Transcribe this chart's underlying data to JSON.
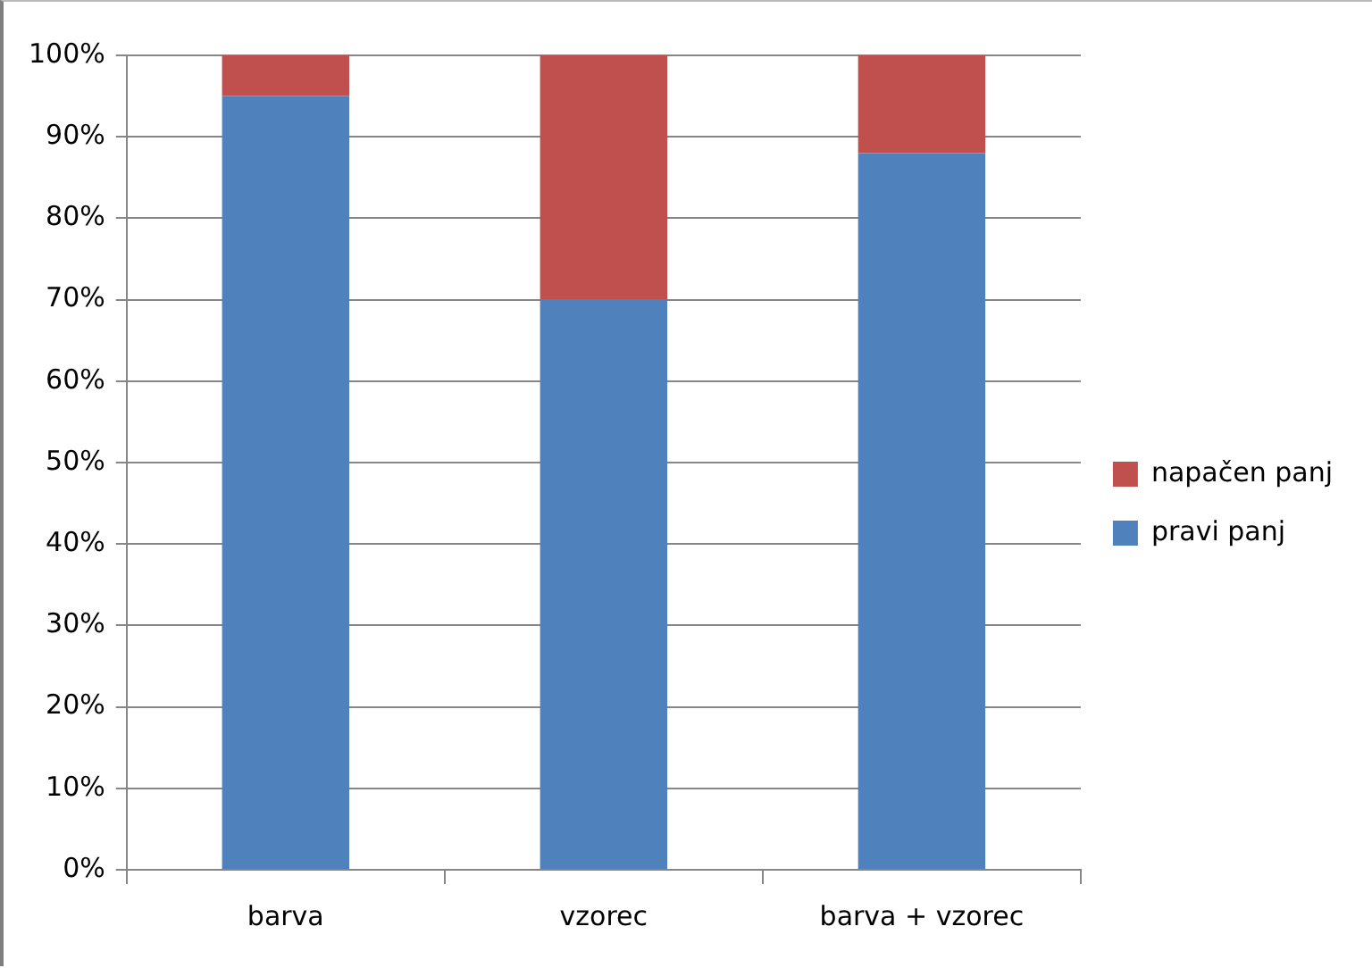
{
  "chart_data": {
    "type": "bar",
    "stacked": true,
    "categories": [
      "barva",
      "vzorec",
      "barva + vzorec"
    ],
    "series": [
      {
        "name": "pravi panj",
        "color": "#4f81bd",
        "values": [
          95,
          70,
          88
        ]
      },
      {
        "name": "napačen panj",
        "color": "#c0504d",
        "values": [
          5,
          30,
          12
        ]
      }
    ],
    "ylim": [
      0,
      100
    ],
    "yticks": [
      {
        "value": 0,
        "label": "0%"
      },
      {
        "value": 10,
        "label": "10%"
      },
      {
        "value": 20,
        "label": "20%"
      },
      {
        "value": 30,
        "label": "30%"
      },
      {
        "value": 40,
        "label": "40%"
      },
      {
        "value": 50,
        "label": "50%"
      },
      {
        "value": 60,
        "label": "60%"
      },
      {
        "value": 70,
        "label": "70%"
      },
      {
        "value": 80,
        "label": "80%"
      },
      {
        "value": 90,
        "label": "90%"
      },
      {
        "value": 100,
        "label": "100%"
      }
    ],
    "grid": "y",
    "legend": "right"
  }
}
